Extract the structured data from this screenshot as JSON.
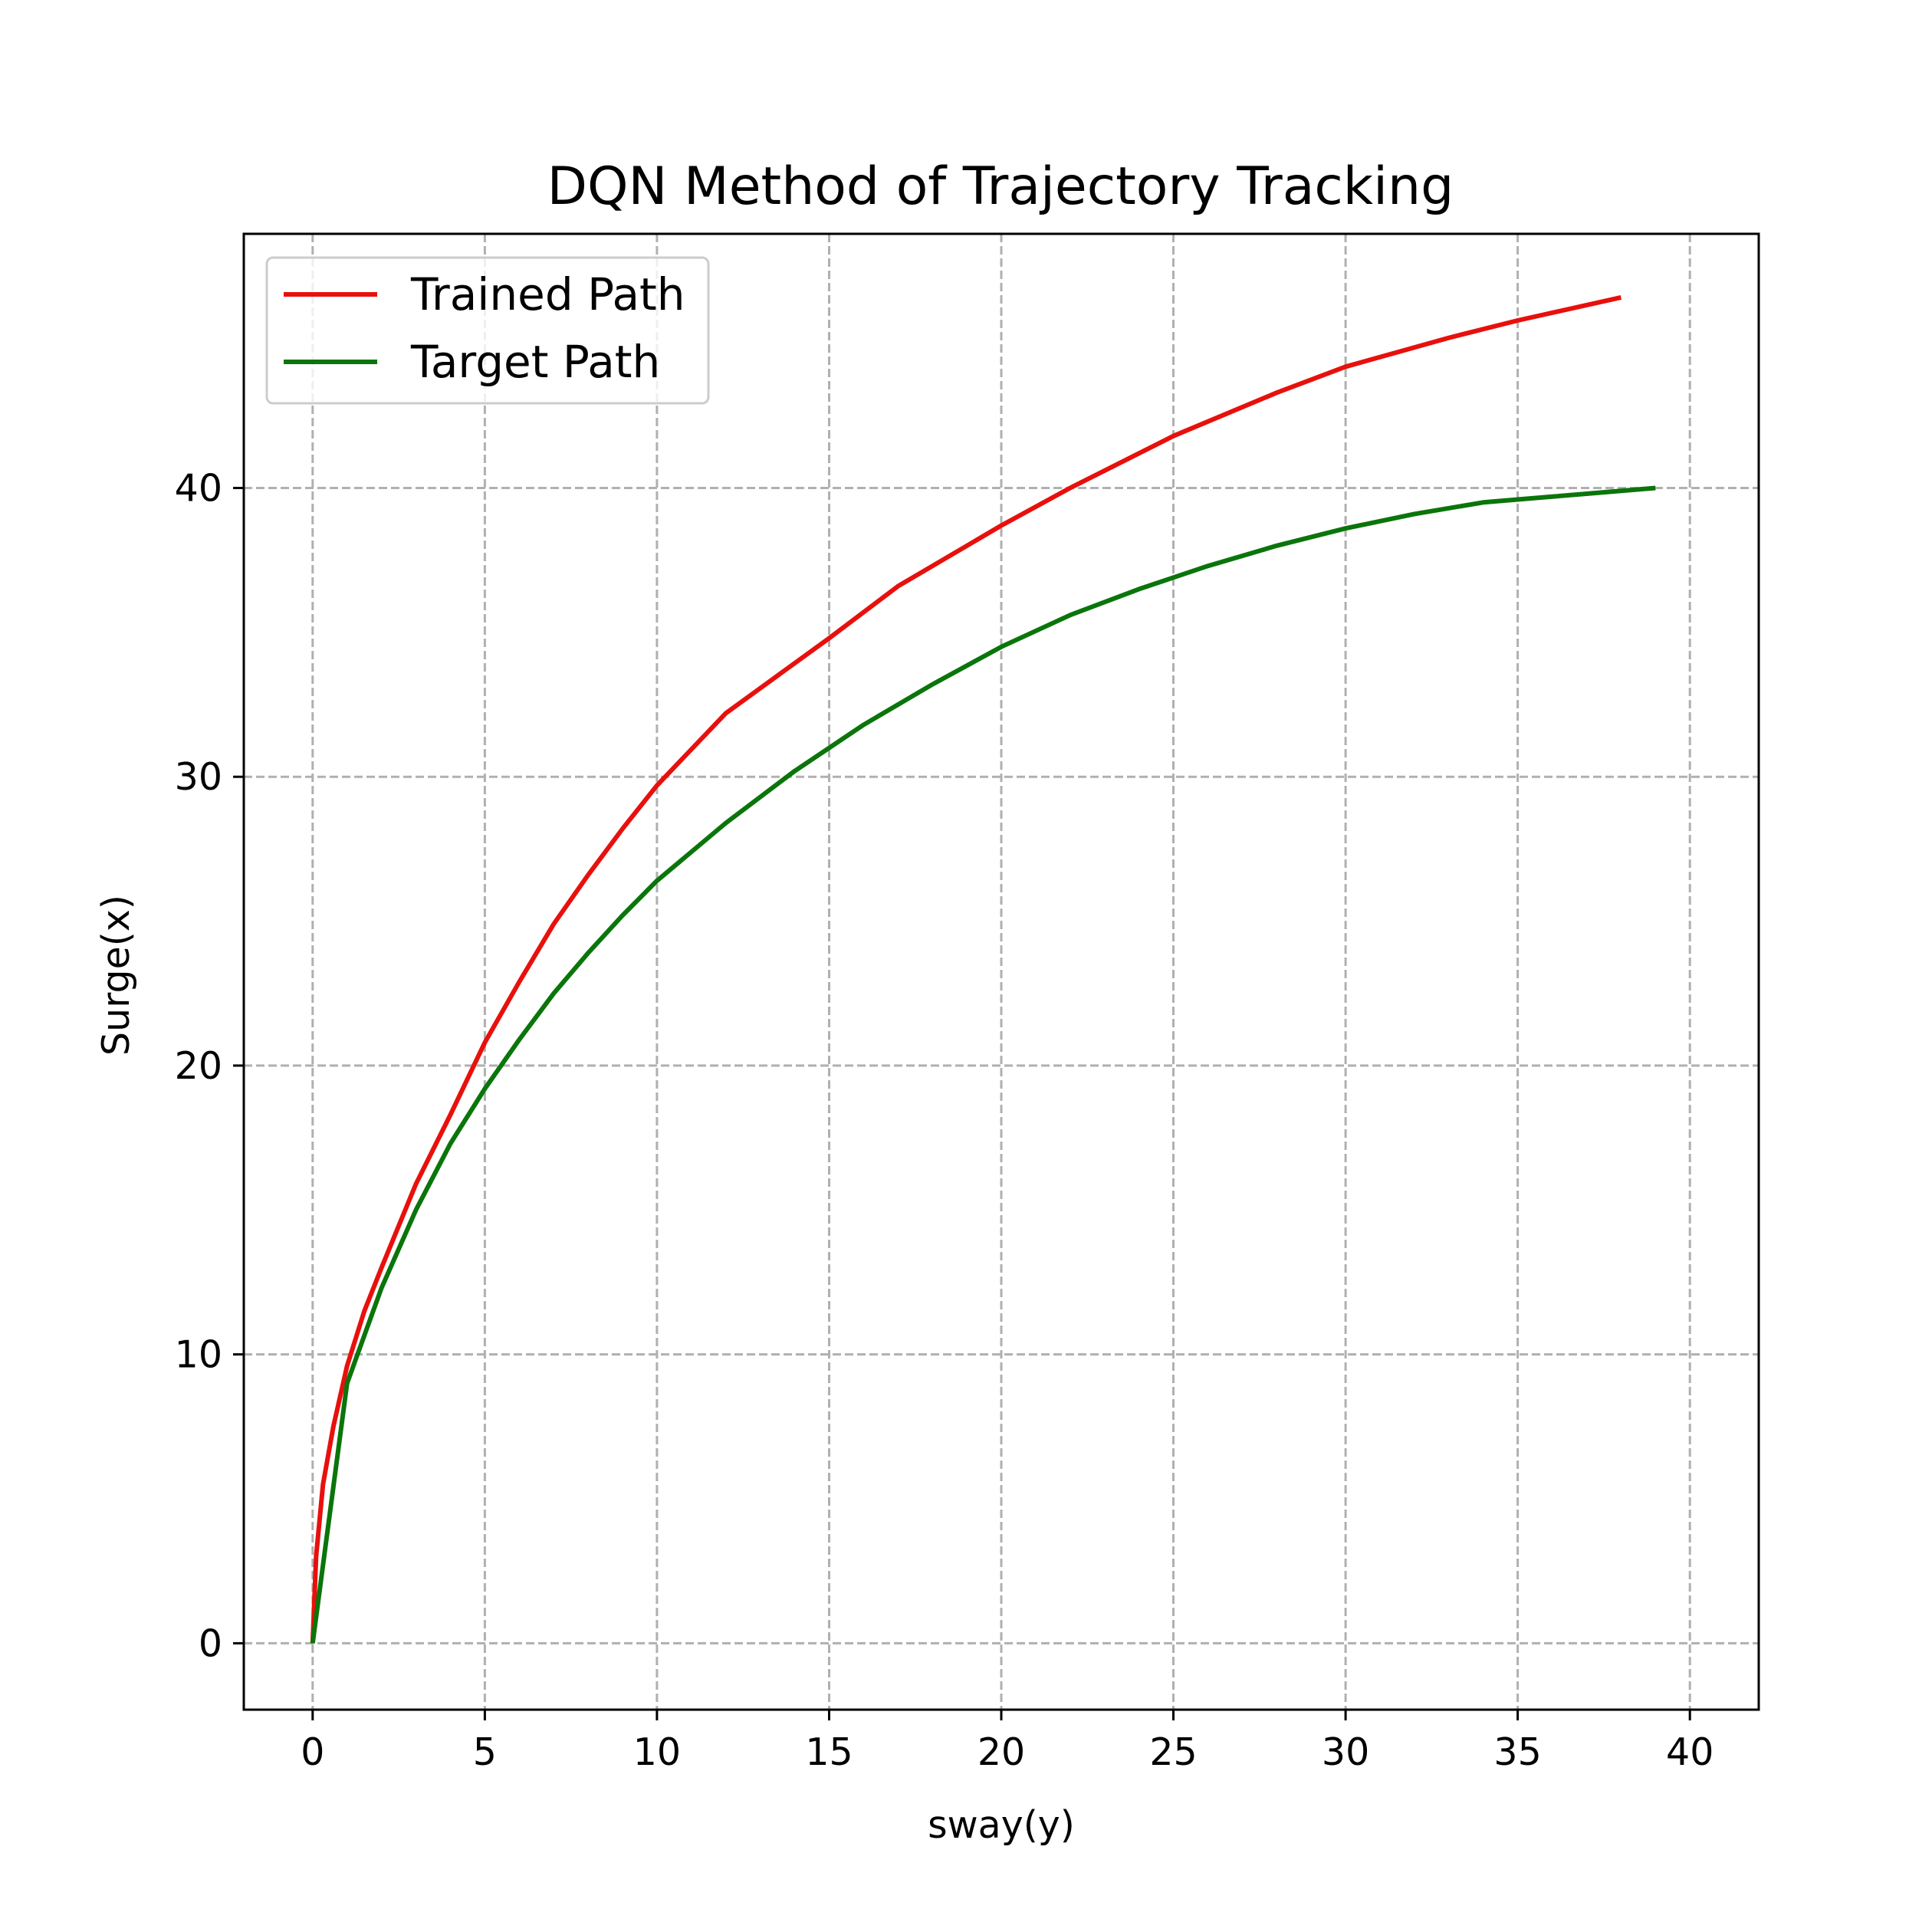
{
  "chart_data": {
    "type": "line",
    "title": "DQN Method of Trajectory Tracking",
    "xlabel": "sway(y)",
    "ylabel": "Surge(x)",
    "xlim": [
      -2,
      42
    ],
    "ylim": [
      -2.3,
      48.8
    ],
    "xticks": [
      0,
      5,
      10,
      15,
      20,
      25,
      30,
      35,
      40
    ],
    "yticks": [
      0,
      10,
      20,
      30,
      40
    ],
    "grid": true,
    "legend_position": "upper-left",
    "series": [
      {
        "name": "Trained Path",
        "color": "#e8100c",
        "points": [
          [
            0,
            0
          ],
          [
            0.1,
            3
          ],
          [
            0.3,
            5.5
          ],
          [
            0.6,
            7.5
          ],
          [
            1,
            9.6
          ],
          [
            1.5,
            11.5
          ],
          [
            2,
            13
          ],
          [
            3,
            15.9
          ],
          [
            4,
            18.3
          ],
          [
            5,
            20.8
          ],
          [
            6,
            22.9
          ],
          [
            7,
            24.9
          ],
          [
            8,
            26.6
          ],
          [
            9,
            28.2
          ],
          [
            10,
            29.7
          ],
          [
            12,
            32.2
          ],
          [
            15,
            34.8
          ],
          [
            17,
            36.6
          ],
          [
            20,
            38.7
          ],
          [
            22,
            40
          ],
          [
            25,
            41.8
          ],
          [
            28,
            43.3
          ],
          [
            30,
            44.2
          ],
          [
            33,
            45.2
          ],
          [
            35,
            45.8
          ],
          [
            38,
            46.6
          ]
        ]
      },
      {
        "name": "Target Path",
        "color": "#0a750a",
        "points": [
          [
            0,
            0
          ],
          [
            1,
            9
          ],
          [
            2,
            12.3
          ],
          [
            3,
            15
          ],
          [
            4,
            17.3
          ],
          [
            5,
            19.2
          ],
          [
            6,
            20.9
          ],
          [
            7,
            22.5
          ],
          [
            8,
            23.9
          ],
          [
            9,
            25.2
          ],
          [
            10,
            26.4
          ],
          [
            12,
            28.4
          ],
          [
            14,
            30.2
          ],
          [
            16,
            31.8
          ],
          [
            18,
            33.2
          ],
          [
            20,
            34.5
          ],
          [
            22,
            35.6
          ],
          [
            24,
            36.5
          ],
          [
            26,
            37.3
          ],
          [
            28,
            38
          ],
          [
            30,
            38.6
          ],
          [
            32,
            39.1
          ],
          [
            34,
            39.5
          ],
          [
            36,
            39.7
          ],
          [
            38,
            39.9
          ],
          [
            39,
            40
          ]
        ]
      }
    ]
  }
}
